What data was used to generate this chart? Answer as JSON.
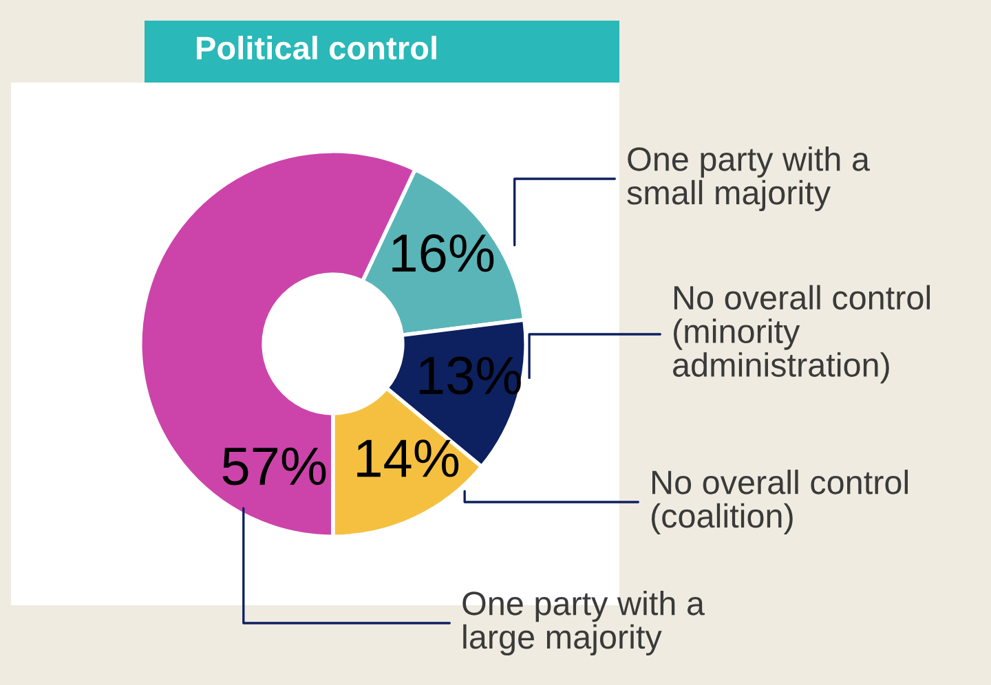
{
  "chart_data": {
    "type": "donut",
    "title": "Political control",
    "categories": [
      "One party with a\nlarge majority",
      "One party with a\nsmall majority",
      "No overall control\n(minority\nadministration)",
      "No overall control\n(coalition)"
    ],
    "values": [
      57,
      16,
      13,
      14
    ],
    "value_labels": [
      "57%",
      "16%",
      "13%",
      "14%"
    ],
    "colors": [
      "#cc44aa",
      "#5ab5b8",
      "#0d2060",
      "#f5c040"
    ],
    "legend": false
  }
}
